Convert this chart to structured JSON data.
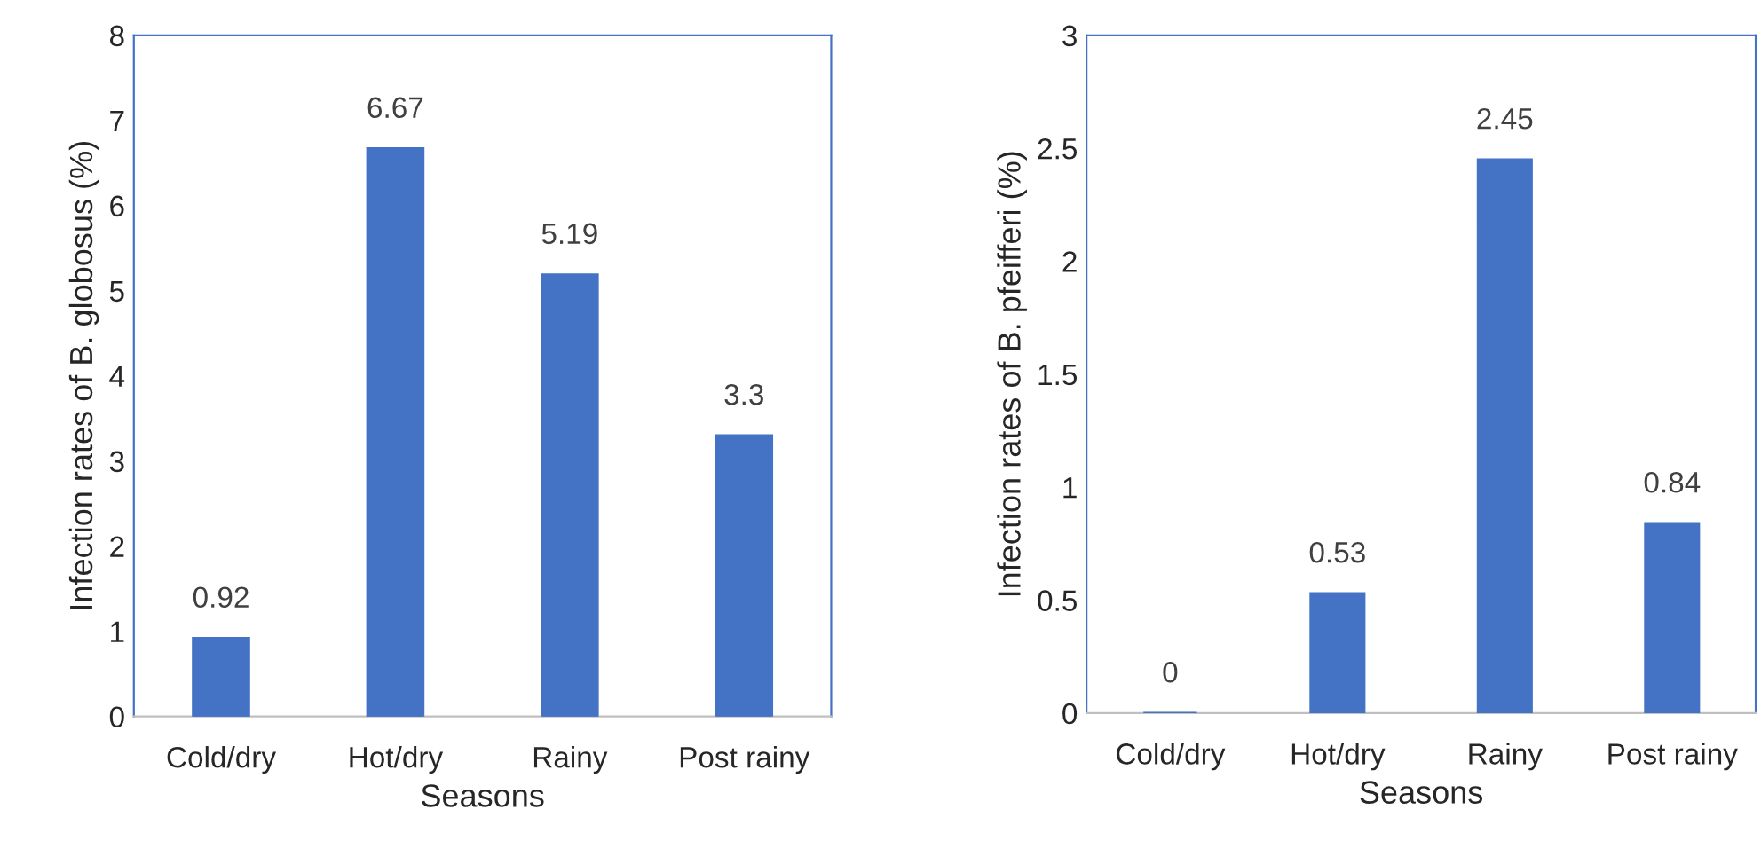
{
  "chart_data": [
    {
      "type": "bar",
      "categories": [
        "Cold/dry",
        "Hot/dry",
        "Rainy",
        "Post rainy"
      ],
      "values": [
        0.92,
        6.67,
        5.19,
        3.3
      ],
      "color": "#4472c4",
      "xlabel": "Seasons",
      "ylabel": "Infection rates of B. globosus (%)",
      "ylim": [
        0,
        8
      ],
      "yticks": [
        0,
        1,
        2,
        3,
        4,
        5,
        6,
        7,
        8
      ],
      "data_labels": true,
      "grid": false,
      "legend": false
    },
    {
      "type": "bar",
      "categories": [
        "Cold/dry",
        "Hot/dry",
        "Rainy",
        "Post rainy"
      ],
      "values": [
        0,
        0.53,
        2.45,
        0.84
      ],
      "color": "#4472c4",
      "xlabel": "Seasons",
      "ylabel": "Infection rates of B. pfeifferi (%)",
      "ylim": [
        0,
        3
      ],
      "yticks": [
        0,
        0.5,
        1,
        1.5,
        2,
        2.5,
        3
      ],
      "data_labels": true,
      "grid": false,
      "legend": false
    }
  ]
}
